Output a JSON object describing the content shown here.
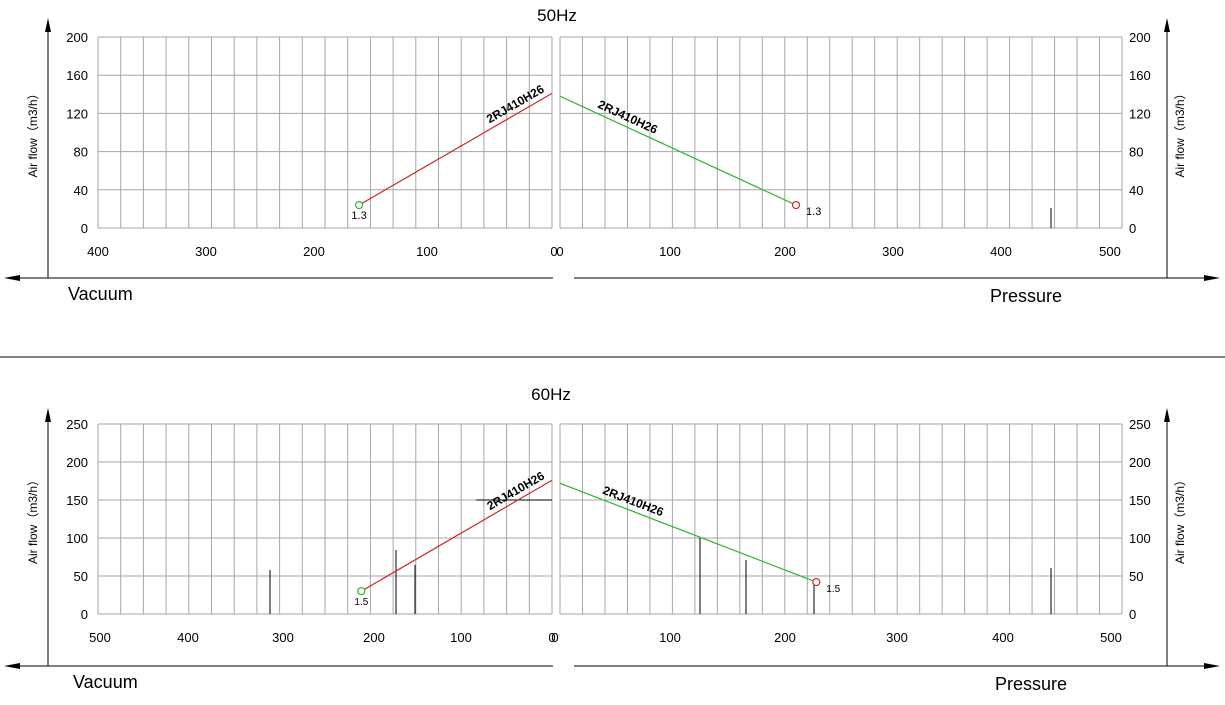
{
  "charts": [
    {
      "title": "50Hz",
      "left": {
        "xlabel": "Vacuum",
        "ylabel": "Air flow（m3/h）",
        "xticks": [
          "400",
          "300",
          "200",
          "100",
          "0"
        ],
        "yticks": [
          "0",
          "40",
          "80",
          "120",
          "160",
          "200"
        ]
      },
      "right": {
        "xlabel": "Pressure",
        "ylabel": "Air flow（m3/h）",
        "xticks": [
          "0",
          "100",
          "200",
          "300",
          "400",
          "500"
        ],
        "yticks": [
          "0",
          "40",
          "80",
          "120",
          "160",
          "200"
        ]
      }
    },
    {
      "title": "60Hz",
      "left": {
        "xlabel": "Vacuum",
        "ylabel": "Air flow（m3/h）",
        "xticks": [
          "500",
          "400",
          "300",
          "200",
          "100",
          "0"
        ],
        "yticks": [
          "0",
          "50",
          "100",
          "150",
          "200",
          "250"
        ]
      },
      "right": {
        "xlabel": "Pressure",
        "ylabel": "Air flow（m3/h）",
        "xticks": [
          "0",
          "100",
          "200",
          "300",
          "400",
          "500"
        ],
        "yticks": [
          "0",
          "50",
          "100",
          "150",
          "200",
          "250"
        ]
      }
    }
  ],
  "chart_data": [
    {
      "type": "line",
      "title": "50Hz",
      "panel": "vacuum",
      "xlabel": "Vacuum",
      "ylabel": "Air flow（m3/h）",
      "xlim": [
        400,
        0
      ],
      "ylim": [
        0,
        200
      ],
      "grid": true,
      "series": [
        {
          "name": "2RJ410H26",
          "color": "#cc2a2a",
          "x": [
            170,
            0
          ],
          "y": [
            24,
            141
          ],
          "end_marker": {
            "x": 170,
            "y": 24,
            "label": "1.3",
            "color": "#2db82d"
          }
        }
      ]
    },
    {
      "type": "line",
      "title": "50Hz",
      "panel": "pressure",
      "xlabel": "Pressure",
      "ylabel": "Air flow（m3/h）",
      "xlim": [
        0,
        500
      ],
      "ylim": [
        0,
        200
      ],
      "grid": true,
      "series": [
        {
          "name": "2RJ410H26",
          "color": "#2db82d",
          "x": [
            0,
            210
          ],
          "y": [
            138,
            24
          ],
          "end_marker": {
            "x": 210,
            "y": 24,
            "label": "1.3",
            "color": "#cc2a2a"
          }
        }
      ]
    },
    {
      "type": "line",
      "title": "60Hz",
      "panel": "vacuum",
      "xlabel": "Vacuum",
      "ylabel": "Air flow（m3/h）",
      "xlim": [
        500,
        0
      ],
      "ylim": [
        0,
        250
      ],
      "grid": true,
      "series": [
        {
          "name": "2RJ410H26",
          "color": "#cc2a2a",
          "x": [
            210,
            0
          ],
          "y": [
            30,
            176
          ],
          "end_marker": {
            "x": 210,
            "y": 30,
            "label": "1.5",
            "color": "#2db82d"
          }
        }
      ]
    },
    {
      "type": "line",
      "title": "60Hz",
      "panel": "pressure",
      "xlabel": "Pressure",
      "ylabel": "Air flow（m3/h）",
      "xlim": [
        0,
        500
      ],
      "ylim": [
        0,
        250
      ],
      "grid": true,
      "series": [
        {
          "name": "2RJ410H26",
          "color": "#2db82d",
          "x": [
            0,
            228
          ],
          "y": [
            172,
            42
          ],
          "end_marker": {
            "x": 228,
            "y": 42,
            "label": "1.5",
            "color": "#cc2a2a"
          }
        }
      ]
    }
  ]
}
